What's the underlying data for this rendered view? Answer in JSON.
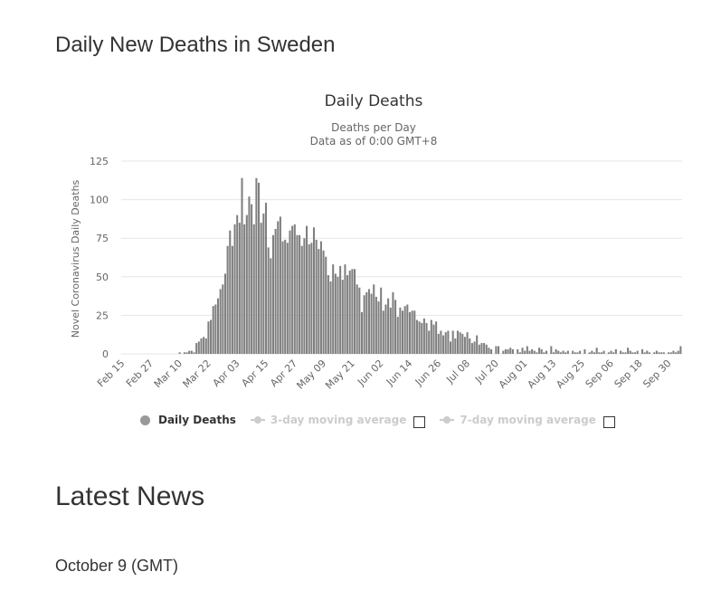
{
  "page": {
    "section_title": "Daily New Deaths in Sweden",
    "news_title": "Latest News",
    "news_date": "October 9 (GMT)"
  },
  "legend": {
    "items": [
      {
        "label": "Daily Deaths",
        "active": true
      },
      {
        "label": "3-day moving average",
        "active": false
      },
      {
        "label": "7-day moving average",
        "active": false
      }
    ]
  },
  "colors": {
    "bar": "#7f7f7f",
    "bar_edge": "#ffffff",
    "grid": "#e6e6e6",
    "text": "#333333",
    "axis_text": "#666666",
    "inactive": "#cccccc"
  },
  "chart_data": {
    "type": "bar",
    "title": "Daily Deaths",
    "subtitle": [
      "Deaths per Day",
      "Data as of 0:00 GMT+8"
    ],
    "xlabel": "",
    "ylabel": "Novel Coronavirus Daily Deaths",
    "ylim": [
      0,
      125
    ],
    "yticks": [
      0,
      25,
      50,
      75,
      100,
      125
    ],
    "grid": true,
    "legend_position": "bottom",
    "start_date": "Feb 15",
    "xtick_labels": [
      "Feb 15",
      "Feb 27",
      "Mar 10",
      "Mar 22",
      "Apr 03",
      "Apr 15",
      "Apr 27",
      "May 09",
      "May 21",
      "Jun 02",
      "Jun 14",
      "Jun 26",
      "Jul 08",
      "Jul 20",
      "Aug 01",
      "Aug 13",
      "Aug 25",
      "Sep 06",
      "Sep 18",
      "Sep 30"
    ],
    "xtick_interval_days": 12,
    "series": [
      {
        "name": "Daily Deaths",
        "values": [
          0,
          0,
          0,
          0,
          0,
          0,
          0,
          0,
          0,
          0,
          0,
          0,
          0,
          0,
          0,
          0,
          0,
          0,
          0,
          0,
          0,
          0,
          0,
          0,
          1,
          0,
          1,
          1,
          2,
          2,
          1,
          7,
          8,
          10,
          11,
          10,
          21,
          22,
          31,
          32,
          36,
          42,
          45,
          52,
          70,
          80,
          70,
          84,
          90,
          85,
          114,
          84,
          90,
          102,
          97,
          84,
          114,
          111,
          85,
          91,
          98,
          69,
          62,
          77,
          81,
          86,
          89,
          73,
          74,
          72,
          80,
          83,
          84,
          77,
          77,
          70,
          75,
          83,
          71,
          72,
          82,
          74,
          68,
          73,
          67,
          63,
          51,
          47,
          58,
          52,
          50,
          57,
          48,
          58,
          51,
          54,
          55,
          55,
          45,
          43,
          27,
          38,
          40,
          42,
          39,
          45,
          37,
          34,
          43,
          28,
          32,
          36,
          30,
          40,
          35,
          24,
          30,
          28,
          31,
          32,
          27,
          28,
          28,
          22,
          21,
          20,
          23,
          20,
          15,
          22,
          19,
          21,
          13,
          15,
          12,
          14,
          15,
          8,
          15,
          10,
          15,
          14,
          13,
          11,
          14,
          10,
          7,
          8,
          12,
          6,
          7,
          7,
          6,
          4,
          3,
          0,
          5,
          5,
          0,
          2,
          3,
          3,
          4,
          3,
          0,
          3,
          1,
          4,
          2,
          5,
          2,
          3,
          2,
          1,
          4,
          3,
          1,
          2,
          0,
          5,
          1,
          3,
          2,
          1,
          2,
          1,
          2,
          0,
          2,
          1,
          1,
          2,
          0,
          3,
          0,
          1,
          2,
          1,
          4,
          1,
          1,
          2,
          0,
          1,
          2,
          1,
          3,
          0,
          2,
          1,
          1,
          4,
          2,
          1,
          1,
          2,
          0,
          3,
          1,
          2,
          1,
          0,
          1,
          2,
          1,
          1,
          1,
          0,
          1,
          1,
          2,
          1,
          2,
          5
        ]
      }
    ]
  }
}
